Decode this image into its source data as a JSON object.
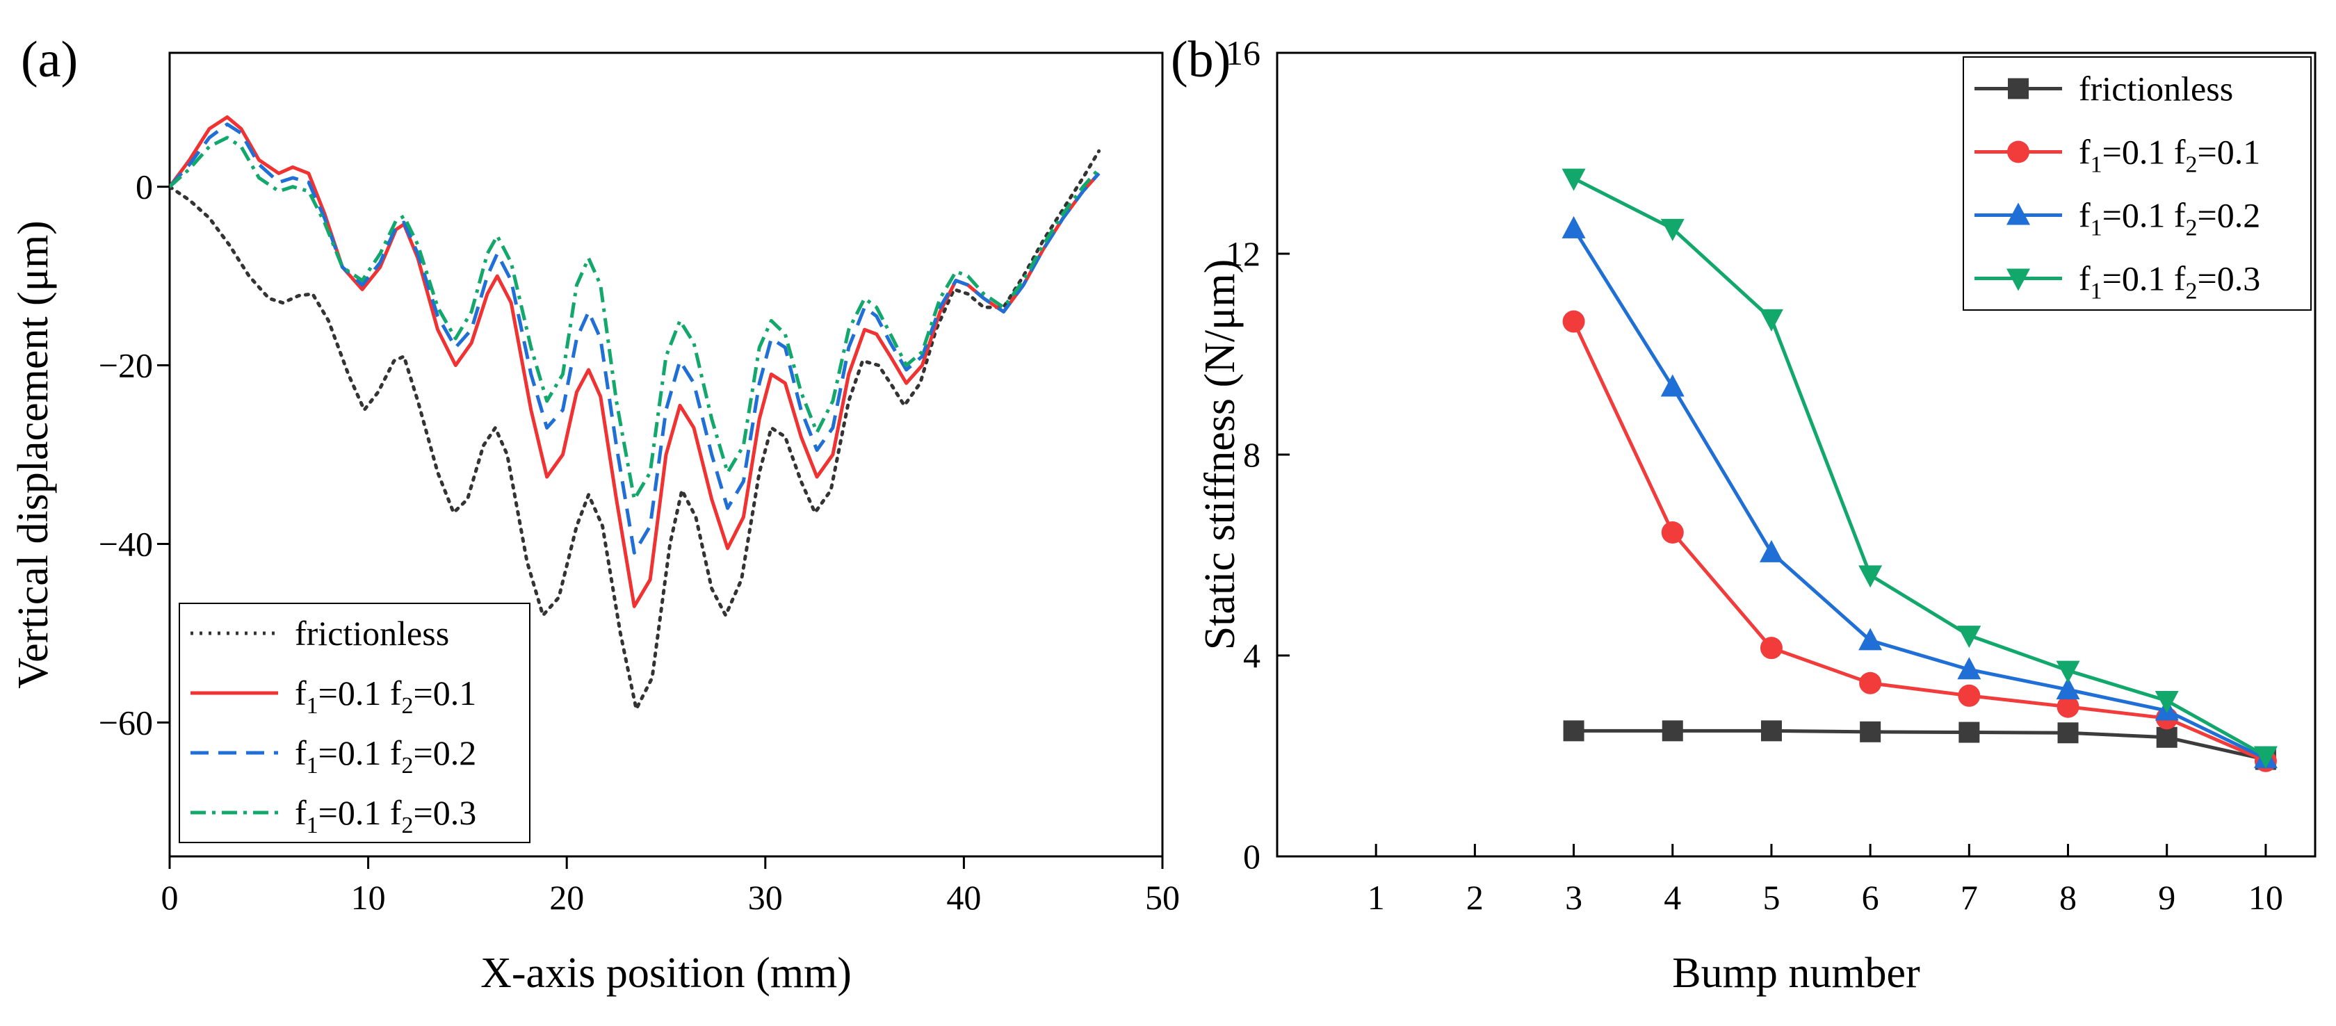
{
  "chart_data": [
    {
      "type": "line",
      "panel_label": "(a)",
      "xlabel": "X-axis position (mm)",
      "ylabel": "Vertical displacement (μm)",
      "xlim": [
        0,
        50
      ],
      "ylim": [
        -75,
        15
      ],
      "xticks": [
        0,
        10,
        20,
        30,
        40,
        50
      ],
      "yticks": [
        0,
        -20,
        -40,
        -60
      ],
      "ytick_labels": [
        "0",
        "−20",
        "−40",
        "−60"
      ],
      "legend_position": "bottom-left",
      "series": [
        {
          "name": "frictionless",
          "legend_parts": [
            "frictionless"
          ],
          "color": "#333333",
          "dash": "dot",
          "x": [
            0,
            1,
            2,
            3,
            4,
            5,
            5.7,
            6.5,
            7.2,
            8,
            9,
            9.8,
            10.5,
            11.3,
            11.8,
            12.5,
            13.5,
            14.3,
            15,
            15.8,
            16.4,
            17,
            18,
            18.8,
            19.6,
            20.5,
            21.1,
            21.8,
            22.7,
            23.5,
            24.3,
            25.2,
            25.8,
            26.5,
            27.3,
            28,
            28.8,
            29.7,
            30.3,
            31,
            31.8,
            32.5,
            33.3,
            34.2,
            34.9,
            35.7,
            36.3,
            37,
            37.8,
            38.6,
            39.5,
            40.2,
            41,
            42,
            43,
            44,
            45,
            46,
            46.8
          ],
          "y": [
            0,
            -1.5,
            -3.5,
            -6.5,
            -10,
            -12.5,
            -13,
            -12.2,
            -12,
            -15,
            -21,
            -25,
            -23,
            -19.5,
            -19,
            -24,
            -32,
            -36.5,
            -35,
            -29,
            -27,
            -30,
            -42,
            -48,
            -46,
            -38,
            -34.5,
            -38,
            -50,
            -58.5,
            -55,
            -40,
            -34,
            -37,
            -45,
            -48,
            -44,
            -32,
            -27,
            -28,
            -33,
            -36.5,
            -34,
            -24,
            -19.5,
            -20,
            -22,
            -24.5,
            -22,
            -16,
            -11.5,
            -12,
            -13.5,
            -13.5,
            -10,
            -6,
            -2.5,
            1,
            4
          ]
        },
        {
          "name": "f1=0.1 f2=0.1",
          "legend_parts": [
            "f",
            "1",
            "=0.1 f",
            "2",
            "=0.1"
          ],
          "color": "#f03232",
          "dash": "solid",
          "x": [
            0,
            1,
            2,
            2.9,
            3.6,
            4.5,
            5.5,
            6.2,
            7,
            7.8,
            8.7,
            9.7,
            10.6,
            11.4,
            11.8,
            12.5,
            13.5,
            14.4,
            15.2,
            16,
            16.5,
            17.2,
            18.2,
            19,
            19.8,
            20.5,
            21.1,
            21.7,
            22.5,
            23.4,
            24.2,
            25,
            25.7,
            26.4,
            27.3,
            28.1,
            28.9,
            29.7,
            30.3,
            31,
            31.8,
            32.6,
            33.4,
            34.2,
            35,
            35.6,
            36.3,
            37.1,
            37.9,
            38.8,
            39.6,
            40.2,
            41,
            42,
            43,
            44,
            45,
            46,
            46.8
          ],
          "y": [
            0,
            3,
            6.5,
            7.8,
            6.5,
            3,
            1.5,
            2.2,
            1.5,
            -3,
            -9,
            -11.5,
            -9,
            -4.8,
            -4.2,
            -8,
            -16,
            -20,
            -17.5,
            -12,
            -10,
            -13,
            -25,
            -32.5,
            -30,
            -23,
            -20.5,
            -23.5,
            -35,
            -47,
            -44,
            -30,
            -24.5,
            -27,
            -35,
            -40.5,
            -37,
            -26,
            -21,
            -22,
            -28,
            -32.5,
            -30,
            -21,
            -16,
            -16.5,
            -19,
            -22,
            -20,
            -14,
            -10.5,
            -11,
            -12.5,
            -14,
            -11,
            -7,
            -3.5,
            -0.5,
            1.5
          ]
        },
        {
          "name": "f1=0.1 f2=0.2",
          "legend_parts": [
            "f",
            "1",
            "=0.1 f",
            "2",
            "=0.2"
          ],
          "color": "#1f6fd6",
          "dash": "dash",
          "x": [
            0,
            1,
            2,
            2.9,
            3.6,
            4.5,
            5.5,
            6.2,
            7,
            7.8,
            8.7,
            9.7,
            10.6,
            11.4,
            11.8,
            12.5,
            13.5,
            14.4,
            15.2,
            16,
            16.5,
            17.2,
            18.2,
            19,
            19.8,
            20.5,
            21.1,
            21.7,
            22.5,
            23.4,
            24.2,
            25,
            25.7,
            26.4,
            27.3,
            28.1,
            28.9,
            29.7,
            30.3,
            31,
            31.8,
            32.6,
            33.4,
            34.2,
            35,
            35.6,
            36.3,
            37.1,
            37.9,
            38.8,
            39.6,
            40.2,
            41,
            42,
            43,
            44,
            45,
            46,
            46.8
          ],
          "y": [
            0,
            2.5,
            5.5,
            7,
            6,
            2.5,
            0.5,
            1,
            0.5,
            -3.5,
            -9,
            -11,
            -8.5,
            -4.5,
            -4,
            -7.5,
            -14.5,
            -18,
            -16,
            -10,
            -7.5,
            -10.5,
            -21,
            -27,
            -25,
            -17,
            -14,
            -17,
            -29,
            -41,
            -38,
            -25,
            -19.5,
            -22,
            -30,
            -36,
            -33,
            -22,
            -17,
            -18,
            -25,
            -29.5,
            -27,
            -18,
            -13.5,
            -14.5,
            -17.5,
            -20.5,
            -19,
            -13.5,
            -10.5,
            -11,
            -12.5,
            -14,
            -11,
            -7,
            -3.5,
            -0.5,
            1.5
          ]
        },
        {
          "name": "f1=0.1 f2=0.3",
          "legend_parts": [
            "f",
            "1",
            "=0.1 f",
            "2",
            "=0.3"
          ],
          "color": "#12a86b",
          "dash": "dashdot",
          "x": [
            0,
            1,
            2,
            2.9,
            3.6,
            4.5,
            5.5,
            6.2,
            7,
            7.8,
            8.7,
            9.7,
            10.6,
            11.4,
            11.8,
            12.5,
            13.5,
            14.4,
            15.2,
            16,
            16.5,
            17.2,
            18.2,
            19,
            19.8,
            20.5,
            21.1,
            21.7,
            22.5,
            23.4,
            24.2,
            25,
            25.7,
            26.4,
            27.3,
            28.1,
            28.9,
            29.7,
            30.3,
            31,
            31.8,
            32.6,
            33.4,
            34.2,
            35,
            35.6,
            36.3,
            37.1,
            37.9,
            38.8,
            39.6,
            40.2,
            41,
            42,
            43,
            44,
            45,
            46,
            46.8
          ],
          "y": [
            0,
            2,
            4.5,
            5.5,
            4.5,
            1,
            -0.5,
            0,
            -0.5,
            -4,
            -9,
            -10.5,
            -7.5,
            -3.8,
            -3.3,
            -6.5,
            -13.5,
            -17,
            -14,
            -7.5,
            -5.5,
            -8.5,
            -18,
            -24,
            -21,
            -11,
            -8,
            -11,
            -24,
            -35,
            -32,
            -19,
            -15,
            -17.5,
            -26,
            -32,
            -29,
            -18,
            -15,
            -16.5,
            -23,
            -27.5,
            -24,
            -16,
            -12.5,
            -13.5,
            -16.5,
            -20,
            -18.5,
            -12.5,
            -9.5,
            -10,
            -12,
            -13.5,
            -10.5,
            -6.5,
            -3,
            0,
            2
          ]
        }
      ]
    },
    {
      "type": "line",
      "panel_label": "(b)",
      "xlabel": "Bump number",
      "ylabel": "Static stiffness (N/μm)",
      "xlim": [
        0,
        10.5
      ],
      "ylim": [
        0,
        16
      ],
      "xticks": [
        1,
        2,
        3,
        4,
        5,
        6,
        7,
        8,
        9,
        10
      ],
      "yticks": [
        0,
        4,
        8,
        12,
        16
      ],
      "ytick_labels": [
        "0",
        "4",
        "8",
        "12",
        "16"
      ],
      "legend_position": "top-right",
      "series": [
        {
          "name": "frictionless",
          "legend_parts": [
            "frictionless"
          ],
          "color": "#3c3c3c",
          "marker": "square",
          "x": [
            3,
            4,
            5,
            6,
            7,
            8,
            9,
            10
          ],
          "y": [
            2.5,
            2.5,
            2.5,
            2.48,
            2.47,
            2.46,
            2.37,
            1.93
          ]
        },
        {
          "name": "f1=0.1 f2=0.1",
          "legend_parts": [
            "f",
            "1",
            "=0.1 f",
            "2",
            "=0.1"
          ],
          "color": "#f23b3b",
          "marker": "circle",
          "x": [
            3,
            4,
            5,
            6,
            7,
            8,
            9,
            10
          ],
          "y": [
            10.65,
            6.45,
            4.15,
            3.45,
            3.2,
            2.98,
            2.75,
            1.9
          ]
        },
        {
          "name": "f1=0.1 f2=0.2",
          "legend_parts": [
            "f",
            "1",
            "=0.1 f",
            "2",
            "=0.2"
          ],
          "color": "#1f6fd6",
          "marker": "triangle-up",
          "x": [
            3,
            4,
            5,
            6,
            7,
            8,
            9,
            10
          ],
          "y": [
            12.5,
            9.35,
            6.05,
            4.3,
            3.72,
            3.32,
            2.9,
            1.95
          ]
        },
        {
          "name": "f1=0.1 f2=0.3",
          "legend_parts": [
            "f",
            "1",
            "=0.1 f",
            "2",
            "=0.3"
          ],
          "color": "#12a86b",
          "marker": "triangle-down",
          "x": [
            3,
            4,
            5,
            6,
            7,
            8,
            9,
            10
          ],
          "y": [
            13.5,
            12.5,
            10.7,
            5.6,
            4.4,
            3.7,
            3.1,
            2.0
          ]
        }
      ]
    }
  ]
}
